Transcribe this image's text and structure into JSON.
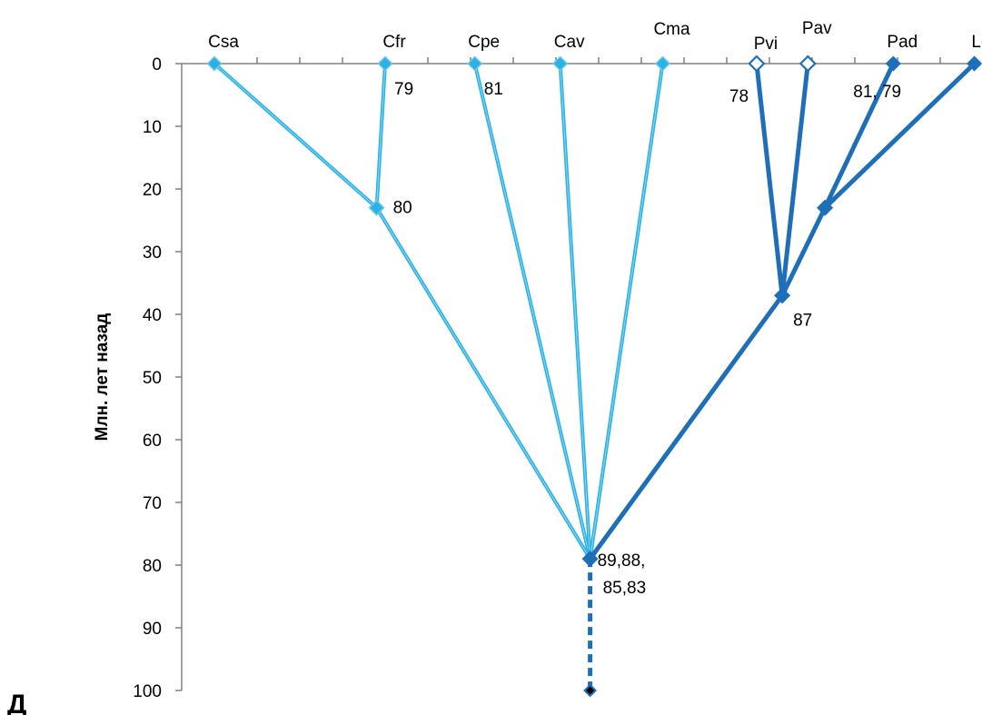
{
  "chart_data": {
    "type": "line",
    "ylabel": "Млн. лет назад",
    "panel_label": "Д",
    "ylim": [
      0,
      100
    ],
    "y_inverted": true,
    "y_ticks": [
      0,
      10,
      20,
      30,
      40,
      50,
      60,
      70,
      80,
      90,
      100
    ],
    "grid": false,
    "colors": {
      "light": "#2BB1E3",
      "dark": "#1F6FB8",
      "dark_dashed": "#1F6FB8",
      "axis": "#808080"
    },
    "taxa": [
      {
        "name": "Csa",
        "x": 1.0,
        "y": 0,
        "group": "light",
        "marker": "filled"
      },
      {
        "name": "Cfr",
        "x": 3.0,
        "y": 0,
        "group": "light",
        "marker": "filled"
      },
      {
        "name": "Cpe",
        "x": 4.05,
        "y": 0,
        "group": "light",
        "marker": "filled"
      },
      {
        "name": "Cav",
        "x": 5.05,
        "y": 0,
        "group": "light",
        "marker": "filled"
      },
      {
        "name": "Cma",
        "x": 6.25,
        "y": 0,
        "group": "light",
        "marker": "filled"
      },
      {
        "name": "Pvi",
        "x": 7.35,
        "y": 0,
        "group": "dark",
        "marker": "open"
      },
      {
        "name": "Pav",
        "x": 7.95,
        "y": 0,
        "group": "dark",
        "marker": "open"
      },
      {
        "name": "Pad",
        "x": 8.95,
        "y": 0,
        "group": "dark",
        "marker": "filled"
      },
      {
        "name": "Lof",
        "x": 9.9,
        "y": 0,
        "group": "dark",
        "marker": "filled"
      }
    ],
    "nodes": [
      {
        "id": "n_cfr_csa",
        "x": 2.9,
        "y": 23,
        "group": "light"
      },
      {
        "id": "n_pvi_pav",
        "x": 7.65,
        "y": 37,
        "group": "dark"
      },
      {
        "id": "n_pad_lof",
        "x": 8.15,
        "y": 23,
        "group": "dark"
      },
      {
        "id": "root",
        "x": 5.4,
        "y": 79,
        "group": "dark"
      },
      {
        "id": "base",
        "x": 5.4,
        "y": 100,
        "group": "base"
      }
    ],
    "branches": [
      {
        "from": "Csa",
        "to": "n_cfr_csa",
        "group": "light",
        "style": "solid"
      },
      {
        "from": "Cfr",
        "to": "n_cfr_csa",
        "group": "light",
        "style": "solid"
      },
      {
        "from": "n_cfr_csa",
        "to": "root",
        "group": "light",
        "style": "solid"
      },
      {
        "from": "Cpe",
        "to": "root",
        "group": "light",
        "style": "solid"
      },
      {
        "from": "Cav",
        "to": "root",
        "group": "light",
        "style": "solid"
      },
      {
        "from": "Cma",
        "to": "root",
        "group": "light",
        "style": "solid"
      },
      {
        "from": "Pvi",
        "to": "n_pvi_pav",
        "group": "dark",
        "style": "solid"
      },
      {
        "from": "Pav",
        "to": "n_pvi_pav",
        "group": "dark",
        "style": "solid"
      },
      {
        "from": "Pad",
        "to": "n_pad_lof",
        "group": "dark",
        "style": "solid"
      },
      {
        "from": "Lof",
        "to": "n_pad_lof",
        "group": "dark",
        "style": "solid"
      },
      {
        "from": "n_pad_lof",
        "to": "n_pvi_pav",
        "group": "dark",
        "style": "solid"
      },
      {
        "from": "n_pvi_pav",
        "to": "root",
        "group": "dark",
        "style": "solid"
      },
      {
        "from": "root",
        "to": "base",
        "group": "dark",
        "style": "dashed"
      }
    ],
    "annotations": [
      {
        "text": "79",
        "anchor": "Cfr",
        "pos": "below-right"
      },
      {
        "text": "81",
        "anchor": "Cpe",
        "pos": "below-right"
      },
      {
        "text": "78",
        "anchor": "Pvi",
        "pos": "below-left"
      },
      {
        "text": "81, 79",
        "anchor": "Pad",
        "pos": "below-left"
      },
      {
        "text": "80",
        "anchor": "n_cfr_csa",
        "pos": "right"
      },
      {
        "text": "87",
        "anchor": "n_pvi_pav",
        "pos": "below-right"
      },
      {
        "text": "89,88,",
        "anchor": "root",
        "pos": "right"
      },
      {
        "text": "85,83",
        "anchor": "root",
        "pos": "right-line2"
      }
    ]
  }
}
